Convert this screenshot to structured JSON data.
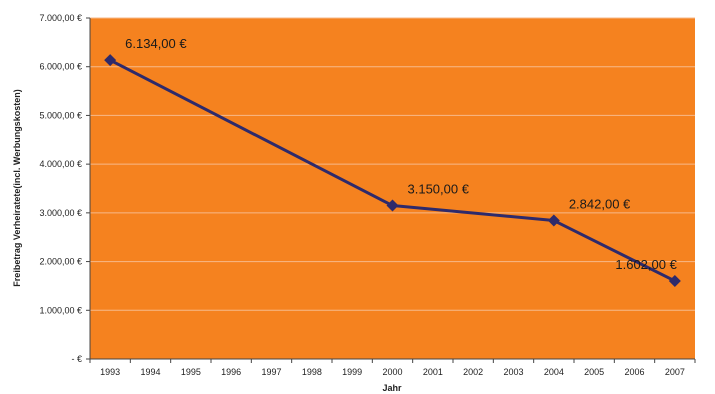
{
  "colors": {
    "plot_background": "#F5821F",
    "line": "#2E2A6B",
    "gridline": "#F7B98A"
  },
  "chart_data": {
    "type": "line",
    "title": "",
    "xlabel": "Jahr",
    "ylabel": "Freibetrag Verheiratete(incl. Werbungskosten)",
    "categories": [
      "1993",
      "1994",
      "1995",
      "1996",
      "1997",
      "1998",
      "1999",
      "2000",
      "2001",
      "2002",
      "2003",
      "2004",
      "2005",
      "2006",
      "2007"
    ],
    "y_tick_labels": [
      "-   €",
      "1.000,00 €",
      "2.000,00 €",
      "3.000,00 €",
      "4.000,00 €",
      "5.000,00 €",
      "6.000,00 €",
      "7.000,00 €"
    ],
    "y_ticks": [
      0,
      1000,
      2000,
      3000,
      4000,
      5000,
      6000,
      7000
    ],
    "ylim": [
      0,
      7000
    ],
    "grid": true,
    "legend": "none",
    "series": [
      {
        "points": [
          {
            "x": "1993",
            "y": 6134,
            "label": "6.134,00 €"
          },
          {
            "x": "2000",
            "y": 3150,
            "label": "3.150,00 €"
          },
          {
            "x": "2004",
            "y": 2842,
            "label": "2.842,00 €"
          },
          {
            "x": "2007",
            "y": 1602,
            "label": "1.602,00 €"
          }
        ]
      }
    ]
  }
}
